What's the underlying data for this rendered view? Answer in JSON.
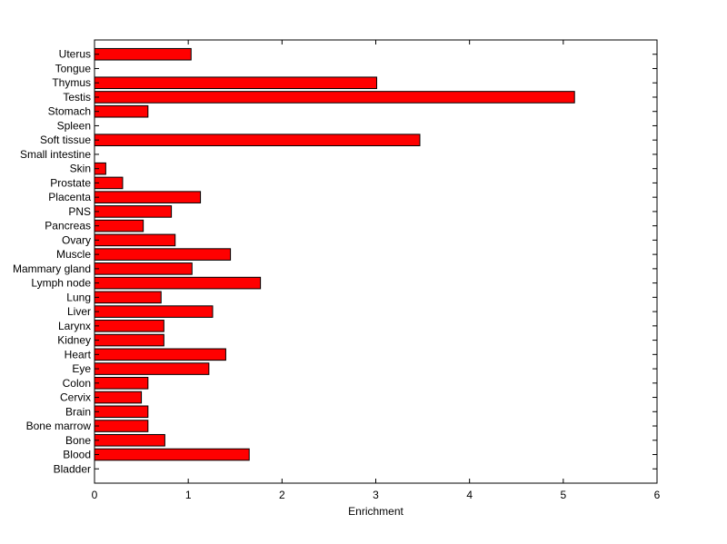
{
  "chart_data": {
    "type": "bar",
    "orientation": "horizontal",
    "xlabel": "Enrichment",
    "ylabel": "",
    "title": "",
    "xlim": [
      0,
      6
    ],
    "xticks": [
      "0",
      "1",
      "2",
      "3",
      "4",
      "5",
      "6"
    ],
    "bar_color": "#ff0000",
    "bar_edge_color": "#000000",
    "grid": false,
    "categories": [
      "Bladder",
      "Blood",
      "Bone",
      "Bone marrow",
      "Brain",
      "Cervix",
      "Colon",
      "Eye",
      "Heart",
      "Kidney",
      "Larynx",
      "Liver",
      "Lung",
      "Lymph node",
      "Mammary gland",
      "Muscle",
      "Ovary",
      "Pancreas",
      "PNS",
      "Placenta",
      "Prostate",
      "Skin",
      "Small intestine",
      "Soft tissue",
      "Spleen",
      "Stomach",
      "Testis",
      "Thymus",
      "Tongue",
      "Uterus"
    ],
    "values": [
      0,
      1.65,
      0.75,
      0.57,
      0.57,
      0.5,
      0.57,
      1.22,
      1.4,
      0.74,
      0.74,
      1.26,
      0.71,
      1.77,
      1.04,
      1.45,
      0.86,
      0.52,
      0.82,
      1.13,
      0.3,
      0.12,
      0,
      3.47,
      0,
      0.57,
      5.12,
      3.01,
      0,
      1.03
    ]
  }
}
